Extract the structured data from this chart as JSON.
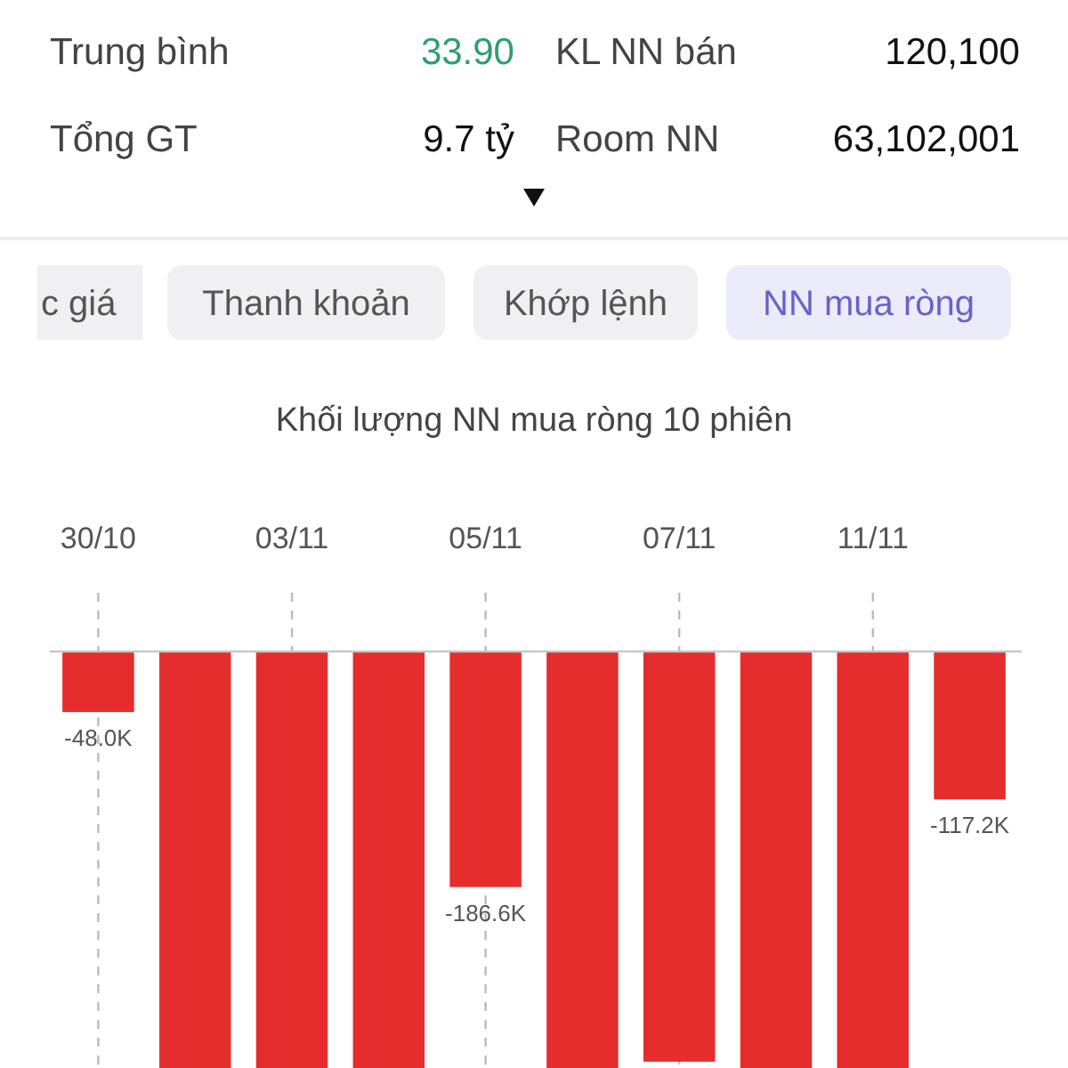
{
  "chart_data": {
    "type": "bar",
    "title": "Khối lượng NN mua ròng 10 phiên",
    "categories": [
      "30/10",
      null,
      "03/11",
      null,
      "05/11",
      null,
      "07/11",
      null,
      "11/11",
      null
    ],
    "values": [
      -48.0,
      -330,
      -330,
      -330,
      -186.6,
      -330,
      -325,
      -330,
      -330,
      -117.2
    ],
    "value_labels": [
      "-48.0K",
      null,
      null,
      null,
      "-186.6K",
      null,
      null,
      null,
      null,
      "-117.2K"
    ],
    "color": "#e52d2d",
    "ylim": [
      -330,
      0
    ],
    "grid": "x",
    "tick_labels": "x",
    "annotations": [
      "Trung bình",
      "33.90",
      "KL NN bán",
      "120,100",
      "Tổng GT",
      "9.7 tỷ",
      "Room NN",
      "63,102,001",
      "c giá",
      "Thanh khoản",
      "Khớp lệnh",
      "NN mua ròng"
    ]
  }
}
